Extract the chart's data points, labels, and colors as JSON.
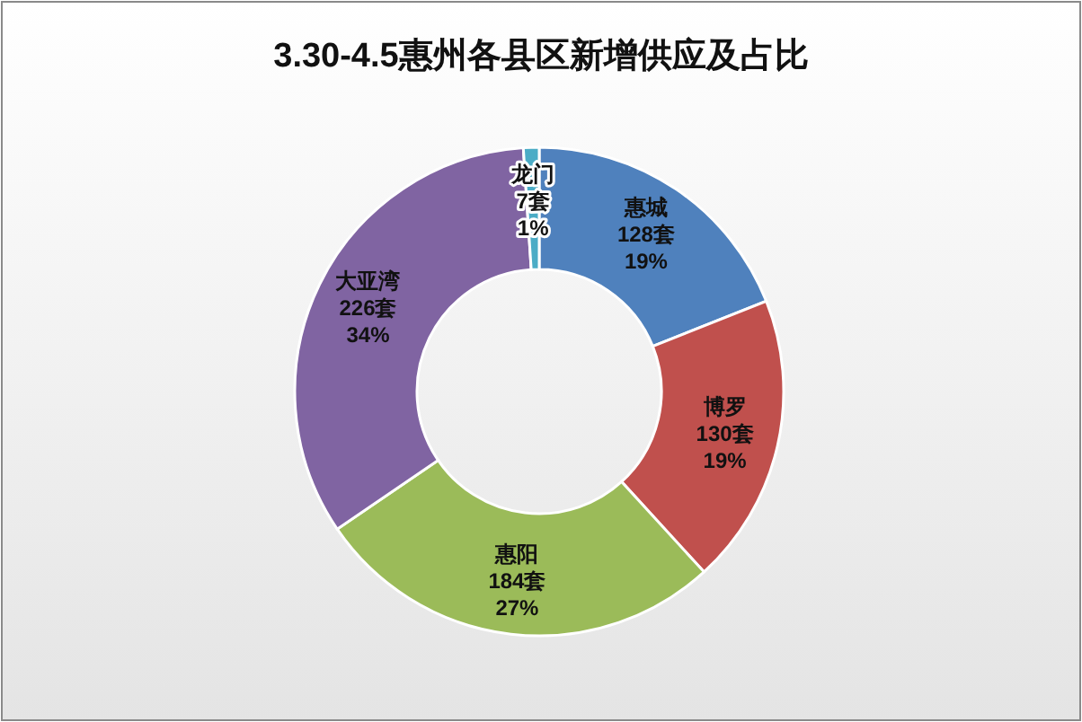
{
  "chart_data": {
    "type": "donut",
    "title": "3.30-4.5惠州各县区新增供应及占比",
    "categories": [
      "惠城",
      "博罗",
      "惠阳",
      "大亚湾",
      "龙门"
    ],
    "values": [
      128,
      130,
      184,
      226,
      7
    ],
    "colors": [
      "#4f81bd",
      "#c0504d",
      "#9bbb59",
      "#8064a2",
      "#4bacc6"
    ],
    "value_labels": [
      "128套\n19%",
      "130套\n19%",
      "184套\n27%",
      "226套\n34%",
      "7套\n1%"
    ]
  }
}
